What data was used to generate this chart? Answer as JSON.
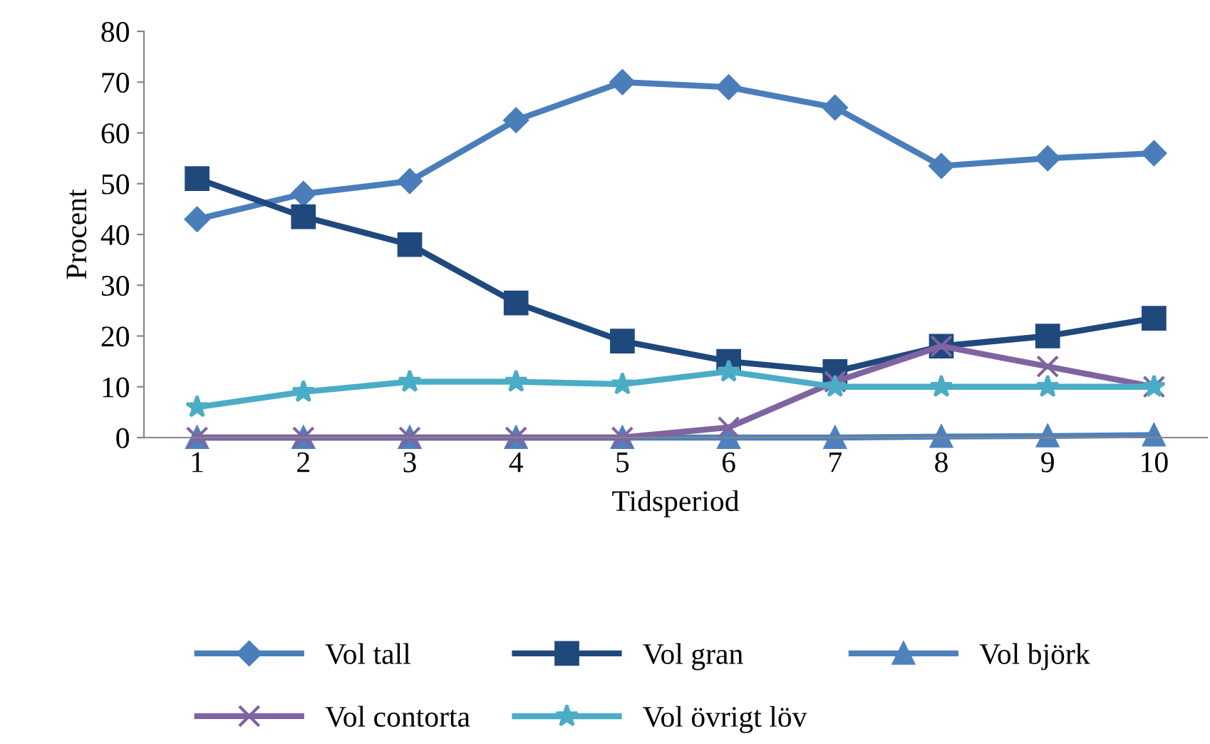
{
  "chart_data": {
    "type": "line",
    "xlabel": "Tidsperiod",
    "ylabel": "Procent",
    "categories": [
      "1",
      "2",
      "3",
      "4",
      "5",
      "6",
      "7",
      "8",
      "9",
      "10"
    ],
    "ylim": [
      0,
      80
    ],
    "yticks": [
      0,
      10,
      20,
      30,
      40,
      50,
      60,
      70,
      80
    ],
    "grid": false,
    "legend": "bottom",
    "series": [
      {
        "name": "Vol tall",
        "color": "#4a7ebb",
        "marker": "diamond",
        "values": [
          43,
          48,
          50.5,
          62.5,
          70,
          69,
          65,
          53.5,
          55,
          56
        ]
      },
      {
        "name": "Vol gran",
        "color": "#1f497d",
        "marker": "square",
        "values": [
          51,
          43.5,
          38,
          26.5,
          19,
          15,
          13,
          18,
          20,
          23.5
        ]
      },
      {
        "name": "Vol björk",
        "color": "#4f81bd",
        "marker": "triangle",
        "values": [
          0,
          0,
          0,
          0,
          0,
          0,
          0,
          0.2,
          0.3,
          0.5
        ]
      },
      {
        "name": "Vol contorta",
        "color": "#8064a2",
        "marker": "cross",
        "values": [
          0,
          0,
          0,
          0,
          0,
          2,
          11,
          18,
          14,
          10
        ]
      },
      {
        "name": "Vol övrigt löv",
        "color": "#4bacc6",
        "marker": "star",
        "values": [
          6,
          9,
          11,
          11,
          10.5,
          13,
          10,
          10,
          10,
          10
        ]
      }
    ]
  }
}
